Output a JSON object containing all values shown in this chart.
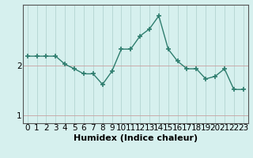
{
  "x": [
    0,
    1,
    2,
    3,
    4,
    5,
    6,
    7,
    8,
    9,
    10,
    11,
    12,
    13,
    14,
    15,
    16,
    17,
    18,
    19,
    20,
    21,
    22,
    23
  ],
  "y": [
    2.18,
    2.18,
    2.18,
    2.18,
    2.02,
    1.93,
    1.83,
    1.83,
    1.62,
    1.88,
    2.32,
    2.32,
    2.58,
    2.72,
    2.98,
    2.32,
    2.08,
    1.93,
    1.93,
    1.73,
    1.78,
    1.93,
    1.52,
    1.52
  ],
  "line_color": "#2e7d6e",
  "marker": "+",
  "marker_color": "#2e7d6e",
  "bg_color": "#d6f0ee",
  "vgrid_color": "#b8d8d5",
  "hgrid_color": "#c8a0a0",
  "xlabel": "Humidex (Indice chaleur)",
  "xlim": [
    -0.5,
    23.5
  ],
  "ylim": [
    0.85,
    3.2
  ],
  "yticks": [
    1,
    2
  ],
  "xlabel_fontsize": 8,
  "tick_fontsize": 7.5,
  "lw": 1.0,
  "marker_size": 4
}
